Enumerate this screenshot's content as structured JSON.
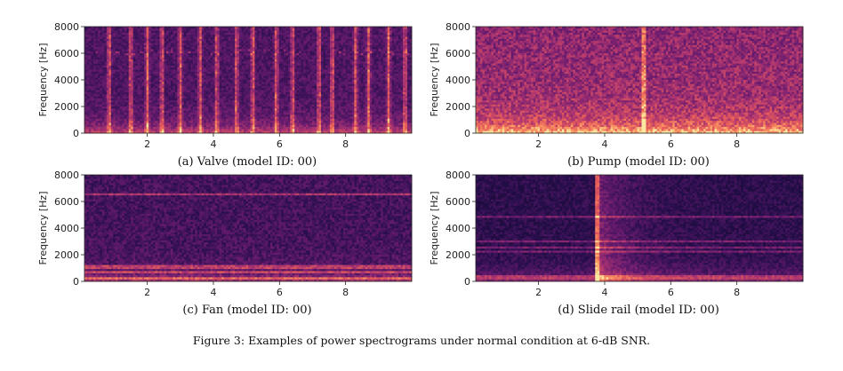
{
  "figure_caption": "Figure 3: Examples of power spectrograms under normal condition at 6-dB SNR.",
  "chart_data": [
    {
      "type": "heatmap",
      "subcaption": "(a) Valve (model ID: 00)",
      "ylabel": "Frequency [Hz]",
      "xlabel": "",
      "xlim": [
        0.1,
        10
      ],
      "ylim": [
        0,
        8000
      ],
      "x_ticks": [
        "2",
        "4",
        "6",
        "8"
      ],
      "y_ticks": [
        "0",
        "2000",
        "4000",
        "6000",
        "8000"
      ],
      "colormap": "magma",
      "colors": {
        "low": "#1a0b33",
        "mid": "#b5367a",
        "high": "#fdbe6a"
      },
      "pattern": "periodic-broadband-clicks",
      "click_times": [
        0.85,
        1.5,
        2.0,
        2.45,
        3.0,
        3.6,
        4.1,
        4.7,
        5.2,
        5.9,
        6.4,
        7.2,
        7.6,
        8.3,
        8.7,
        9.3,
        9.8
      ]
    },
    {
      "type": "heatmap",
      "subcaption": "(b) Pump (model ID: 00)",
      "ylabel": "Frequency [Hz]",
      "xlabel": "",
      "xlim": [
        0.1,
        10
      ],
      "ylim": [
        0,
        8000
      ],
      "x_ticks": [
        "2",
        "4",
        "6",
        "8"
      ],
      "y_ticks": [
        "0",
        "2000",
        "4000",
        "6000",
        "8000"
      ],
      "colormap": "magma",
      "pattern": "broadband-noise-strong-low-frequency"
    },
    {
      "type": "heatmap",
      "subcaption": "(c) Fan (model ID: 00)",
      "ylabel": "Frequency [Hz]",
      "xlabel": "",
      "xlim": [
        0.1,
        10
      ],
      "ylim": [
        0,
        8000
      ],
      "x_ticks": [
        "2",
        "4",
        "6",
        "8"
      ],
      "y_ticks": [
        "0",
        "2000",
        "4000",
        "6000",
        "8000"
      ],
      "colormap": "magma",
      "pattern": "stationary-harmonic-bands",
      "band_frequencies": [
        200,
        650,
        1050,
        6500
      ]
    },
    {
      "type": "heatmap",
      "subcaption": "(d) Slide rail (model ID: 00)",
      "ylabel": "Frequency [Hz]",
      "xlabel": "",
      "xlim": [
        0.1,
        10
      ],
      "ylim": [
        0,
        8000
      ],
      "x_ticks": [
        "2",
        "4",
        "6",
        "8"
      ],
      "y_ticks": [
        "0",
        "2000",
        "4000",
        "6000",
        "8000"
      ],
      "colormap": "magma",
      "pattern": "onset-event-with-harmonic-lines",
      "event_time": 3.7,
      "band_frequencies": [
        300,
        2200,
        2500,
        3000,
        4800
      ]
    }
  ]
}
